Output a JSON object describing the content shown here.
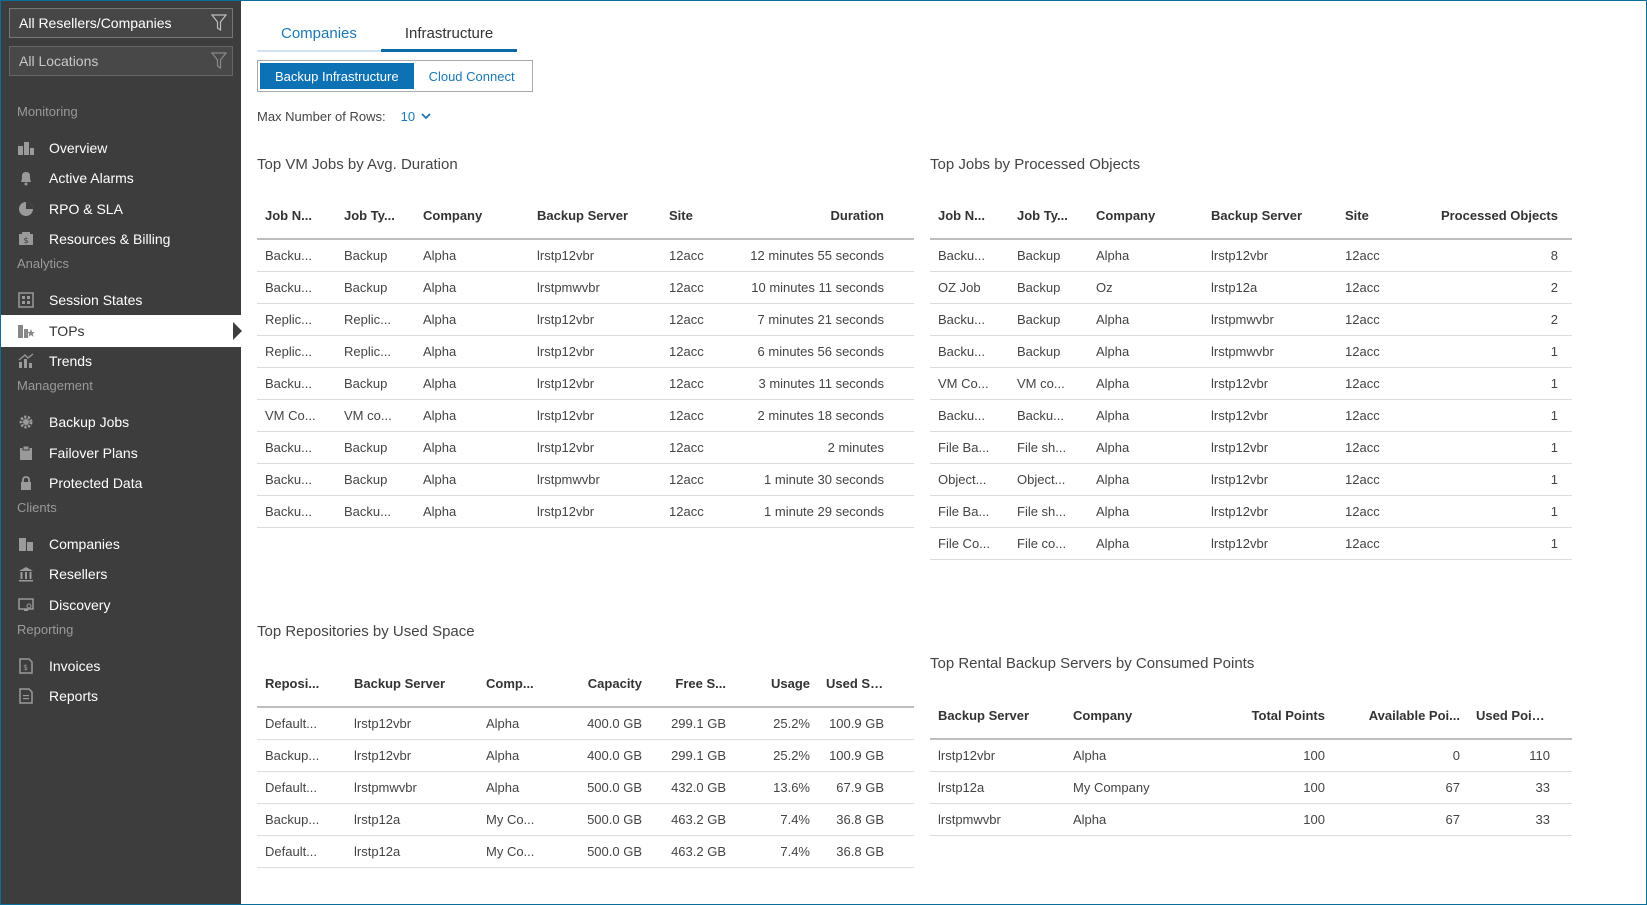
{
  "sidebar": {
    "filter_companies": "All Resellers/Companies",
    "filter_locations": "All Locations",
    "sections": {
      "monitoring": "Monitoring",
      "analytics": "Analytics",
      "management": "Management",
      "clients": "Clients",
      "reporting": "Reporting"
    },
    "items": {
      "overview": "Overview",
      "active_alarms": "Active Alarms",
      "rpo_sla": "RPO & SLA",
      "resources_billing": "Resources & Billing",
      "session_states": "Session States",
      "tops": "TOPs",
      "trends": "Trends",
      "backup_jobs": "Backup Jobs",
      "failover_plans": "Failover Plans",
      "protected_data": "Protected Data",
      "companies": "Companies",
      "resellers": "Resellers",
      "discovery": "Discovery",
      "invoices": "Invoices",
      "reports": "Reports"
    }
  },
  "tabs": {
    "companies": "Companies",
    "infrastructure": "Infrastructure"
  },
  "segment": {
    "backup_infrastructure": "Backup Infrastructure",
    "cloud_connect": "Cloud Connect"
  },
  "rows": {
    "label": "Max Number of Rows:",
    "value": "10"
  },
  "vm_jobs": {
    "title": "Top VM Jobs by Avg. Duration",
    "headers": [
      "Job N...",
      "Job Ty...",
      "Company",
      "Backup Server",
      "Site",
      "Duration"
    ],
    "rows": [
      [
        "Backu...",
        "Backup",
        "Alpha",
        "lrstp12vbr",
        "12acc",
        "12 minutes 55 seconds"
      ],
      [
        "Backu...",
        "Backup",
        "Alpha",
        "lrstpmwvbr",
        "12acc",
        "10 minutes 11 seconds"
      ],
      [
        "Replic...",
        "Replic...",
        "Alpha",
        "lrstp12vbr",
        "12acc",
        "7 minutes 21 seconds"
      ],
      [
        "Replic...",
        "Replic...",
        "Alpha",
        "lrstp12vbr",
        "12acc",
        "6 minutes 56 seconds"
      ],
      [
        "Backu...",
        "Backup",
        "Alpha",
        "lrstp12vbr",
        "12acc",
        "3 minutes 11 seconds"
      ],
      [
        "VM Co...",
        "VM co...",
        "Alpha",
        "lrstp12vbr",
        "12acc",
        "2 minutes 18 seconds"
      ],
      [
        "Backu...",
        "Backup",
        "Alpha",
        "lrstp12vbr",
        "12acc",
        "2 minutes"
      ],
      [
        "Backu...",
        "Backup",
        "Alpha",
        "lrstpmwvbr",
        "12acc",
        "1 minute 30 seconds"
      ],
      [
        "Backu...",
        "Backu...",
        "Alpha",
        "lrstp12vbr",
        "12acc",
        "1 minute 29 seconds"
      ]
    ]
  },
  "processed_jobs": {
    "title": "Top Jobs by Processed Objects",
    "headers": [
      "Job N...",
      "Job Ty...",
      "Company",
      "Backup Server",
      "Site",
      "Processed Objects"
    ],
    "rows": [
      [
        "Backu...",
        "Backup",
        "Alpha",
        "lrstp12vbr",
        "12acc",
        "8"
      ],
      [
        "OZ Job",
        "Backup",
        "Oz",
        "lrstp12a",
        "12acc",
        "2"
      ],
      [
        "Backu...",
        "Backup",
        "Alpha",
        "lrstpmwvbr",
        "12acc",
        "2"
      ],
      [
        "Backu...",
        "Backup",
        "Alpha",
        "lrstpmwvbr",
        "12acc",
        "1"
      ],
      [
        "VM Co...",
        "VM co...",
        "Alpha",
        "lrstp12vbr",
        "12acc",
        "1"
      ],
      [
        "Backu...",
        "Backu...",
        "Alpha",
        "lrstp12vbr",
        "12acc",
        "1"
      ],
      [
        "File Ba...",
        "File sh...",
        "Alpha",
        "lrstp12vbr",
        "12acc",
        "1"
      ],
      [
        "Object...",
        "Object...",
        "Alpha",
        "lrstp12vbr",
        "12acc",
        "1"
      ],
      [
        "File Ba...",
        "File sh...",
        "Alpha",
        "lrstp12vbr",
        "12acc",
        "1"
      ],
      [
        "File Co...",
        "File co...",
        "Alpha",
        "lrstp12vbr",
        "12acc",
        "1"
      ]
    ]
  },
  "repositories": {
    "title": "Top Repositories by Used Space",
    "headers": [
      "Reposi...",
      "Backup Server",
      "Comp...",
      "Capacity",
      "Free S...",
      "Usage",
      "Used Spa..."
    ],
    "rows": [
      [
        "Default...",
        "lrstp12vbr",
        "Alpha",
        "400.0 GB",
        "299.1 GB",
        "25.2%",
        "100.9 GB"
      ],
      [
        "Backup...",
        "lrstp12vbr",
        "Alpha",
        "400.0 GB",
        "299.1 GB",
        "25.2%",
        "100.9 GB"
      ],
      [
        "Default...",
        "lrstpmwvbr",
        "Alpha",
        "500.0 GB",
        "432.0 GB",
        "13.6%",
        "67.9 GB"
      ],
      [
        "Backup...",
        "lrstp12a",
        "My Co...",
        "500.0 GB",
        "463.2 GB",
        "7.4%",
        "36.8 GB"
      ],
      [
        "Default...",
        "lrstp12a",
        "My Co...",
        "500.0 GB",
        "463.2 GB",
        "7.4%",
        "36.8 GB"
      ]
    ]
  },
  "rental": {
    "title": "Top Rental Backup Servers by Consumed Points",
    "headers": [
      "Backup Server",
      "Company",
      "Total Points",
      "Available Poi...",
      "Used Points"
    ],
    "rows": [
      [
        "lrstp12vbr",
        "Alpha",
        "100",
        "0",
        "110"
      ],
      [
        "lrstp12a",
        "My Company",
        "100",
        "67",
        "33"
      ],
      [
        "lrstpmwvbr",
        "Alpha",
        "100",
        "67",
        "33"
      ]
    ]
  }
}
